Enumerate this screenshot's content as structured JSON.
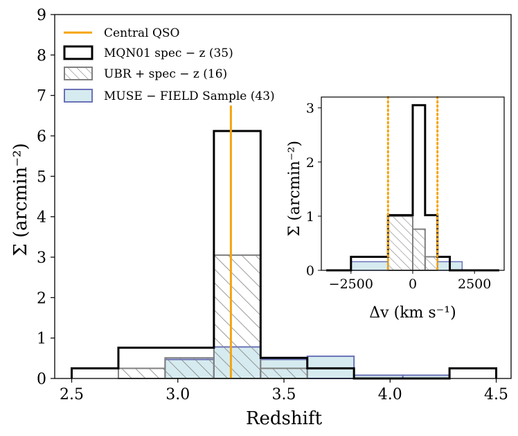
{
  "chart_data": {
    "type": "bar",
    "main": {
      "xlabel": "Redshift",
      "ylabel": "Σ (arcmin⁻²)",
      "xlim": [
        2.42,
        4.57
      ],
      "ylim": [
        0,
        9
      ],
      "xticks": [
        2.5,
        3.0,
        3.5,
        4.0,
        4.5
      ],
      "xtick_labels": [
        "2.5",
        "3.0",
        "3.5",
        "4.0",
        "4.5"
      ],
      "yticks": [
        0,
        1,
        2,
        3,
        4,
        5,
        6,
        7,
        8,
        9
      ],
      "ytick_labels": [
        "0",
        "1",
        "2",
        "3",
        "4",
        "5",
        "6",
        "7",
        "8",
        "9"
      ],
      "bin_edges": [
        2.5,
        2.72,
        2.94,
        3.17,
        3.39,
        3.61,
        3.83,
        4.06,
        4.28,
        4.5
      ],
      "qso_redshift": 3.25,
      "series": [
        {
          "name": "MQN01 spec − z (35)",
          "style": "black-step",
          "color": "#000000",
          "values": [
            0.25,
            0.76,
            0.76,
            6.12,
            0.51,
            0.25,
            0.0,
            0.0,
            0.25
          ]
        },
        {
          "name": "UBR + spec − z (16)",
          "style": "hatched",
          "color": "#808080",
          "values": [
            0.0,
            0.25,
            0.51,
            3.05,
            0.25,
            0.0,
            0.0,
            0.0,
            0.0
          ]
        },
        {
          "name": "MUSE − FIELD Sample (43)",
          "style": "filled",
          "color": "#d6ebef",
          "edge": "#6a72b8",
          "values": [
            0.0,
            0.0,
            0.47,
            0.78,
            0.47,
            0.55,
            0.08,
            0.08,
            0.0
          ]
        }
      ]
    },
    "inset": {
      "xlabel": "Δv (km s⁻¹)",
      "ylabel": "Σ (arcmin⁻²)",
      "xlim": [
        -3700,
        3700
      ],
      "ylim": [
        0,
        3.2
      ],
      "xticks": [
        -2500,
        0,
        2500
      ],
      "xtick_labels": [
        "−2500",
        "0",
        "2500"
      ],
      "yticks": [
        0,
        1,
        2,
        3
      ],
      "ytick_labels": [
        "0",
        "1",
        "2",
        "3"
      ],
      "vlines": [
        -1000,
        1000
      ],
      "bin_edges": [
        -3500,
        -2500,
        -1000,
        0,
        500,
        1000,
        1500,
        2000,
        3500
      ],
      "series": [
        {
          "name": "MQN01 spec − z (35)",
          "values": [
            0.0,
            0.25,
            1.02,
            3.05,
            1.02,
            0.25,
            0.0,
            0.0
          ]
        },
        {
          "name": "UBR + spec − z (16)",
          "values": [
            0.0,
            0.0,
            1.0,
            0.76,
            0.25,
            0.0,
            0.0,
            0.0
          ]
        },
        {
          "name": "MUSE − FIELD Sample (43)",
          "values": [
            0.0,
            0.16,
            0.0,
            0.0,
            0.0,
            0.16,
            0.16,
            0.0
          ]
        }
      ]
    },
    "legend": {
      "placement": "top-left",
      "entries": [
        {
          "label": "Central QSO",
          "kind": "line",
          "color": "#f5a30d"
        },
        {
          "label": "MQN01 spec − z (35)",
          "kind": "box-black"
        },
        {
          "label": "UBR + spec − z (16)",
          "kind": "box-hatch"
        },
        {
          "label": "MUSE − FIELD Sample (43)",
          "kind": "box-fill"
        }
      ]
    },
    "colors": {
      "qso": "#f5a30d",
      "hatch": "#808080",
      "muse_fill": "#d6ebef",
      "muse_edge": "#6a72b8"
    },
    "grid": false
  }
}
